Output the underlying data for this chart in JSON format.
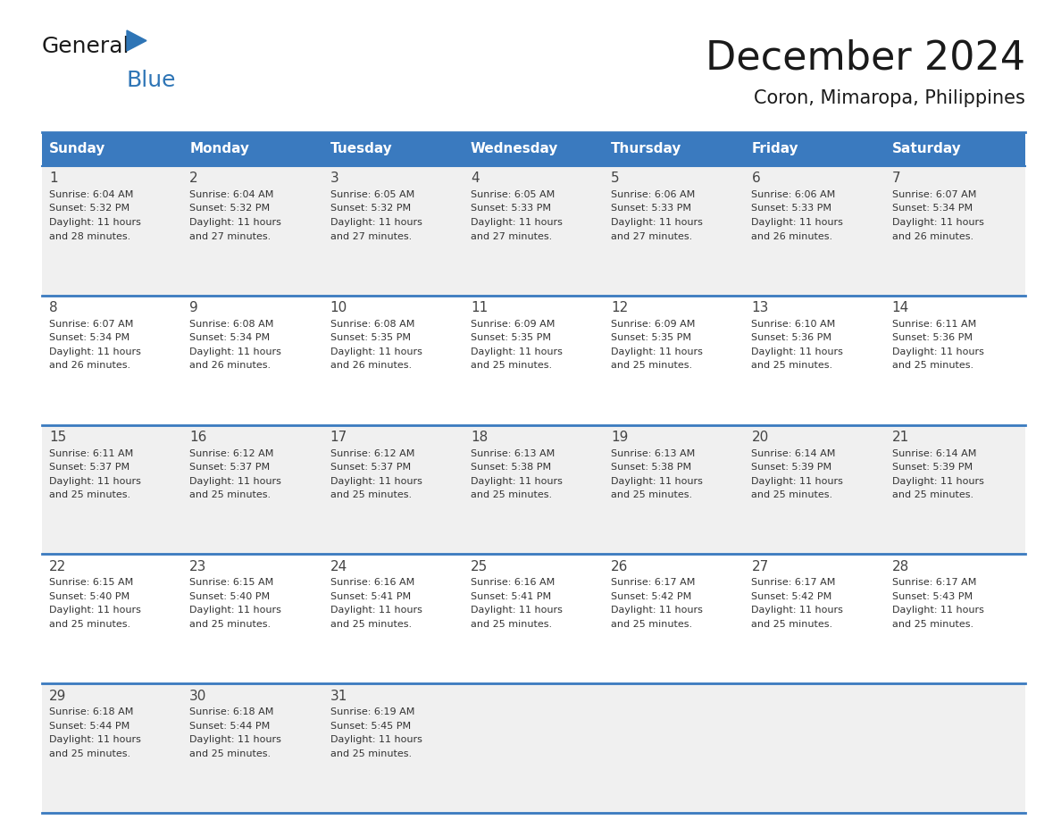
{
  "title": "December 2024",
  "subtitle": "Coron, Mimaropa, Philippines",
  "days_of_week": [
    "Sunday",
    "Monday",
    "Tuesday",
    "Wednesday",
    "Thursday",
    "Friday",
    "Saturday"
  ],
  "header_bg": "#3a7abf",
  "header_text": "#ffffff",
  "row_bg_odd": "#f0f0f0",
  "row_bg_even": "#ffffff",
  "separator_color": "#3a7abf",
  "text_color": "#333333",
  "calendar_data": [
    [
      {
        "day": 1,
        "sunrise": "6:04 AM",
        "sunset": "5:32 PM",
        "daylight": "11 hours and 28 minutes"
      },
      {
        "day": 2,
        "sunrise": "6:04 AM",
        "sunset": "5:32 PM",
        "daylight": "11 hours and 27 minutes"
      },
      {
        "day": 3,
        "sunrise": "6:05 AM",
        "sunset": "5:32 PM",
        "daylight": "11 hours and 27 minutes"
      },
      {
        "day": 4,
        "sunrise": "6:05 AM",
        "sunset": "5:33 PM",
        "daylight": "11 hours and 27 minutes"
      },
      {
        "day": 5,
        "sunrise": "6:06 AM",
        "sunset": "5:33 PM",
        "daylight": "11 hours and 27 minutes"
      },
      {
        "day": 6,
        "sunrise": "6:06 AM",
        "sunset": "5:33 PM",
        "daylight": "11 hours and 26 minutes"
      },
      {
        "day": 7,
        "sunrise": "6:07 AM",
        "sunset": "5:34 PM",
        "daylight": "11 hours and 26 minutes"
      }
    ],
    [
      {
        "day": 8,
        "sunrise": "6:07 AM",
        "sunset": "5:34 PM",
        "daylight": "11 hours and 26 minutes"
      },
      {
        "day": 9,
        "sunrise": "6:08 AM",
        "sunset": "5:34 PM",
        "daylight": "11 hours and 26 minutes"
      },
      {
        "day": 10,
        "sunrise": "6:08 AM",
        "sunset": "5:35 PM",
        "daylight": "11 hours and 26 minutes"
      },
      {
        "day": 11,
        "sunrise": "6:09 AM",
        "sunset": "5:35 PM",
        "daylight": "11 hours and 25 minutes"
      },
      {
        "day": 12,
        "sunrise": "6:09 AM",
        "sunset": "5:35 PM",
        "daylight": "11 hours and 25 minutes"
      },
      {
        "day": 13,
        "sunrise": "6:10 AM",
        "sunset": "5:36 PM",
        "daylight": "11 hours and 25 minutes"
      },
      {
        "day": 14,
        "sunrise": "6:11 AM",
        "sunset": "5:36 PM",
        "daylight": "11 hours and 25 minutes"
      }
    ],
    [
      {
        "day": 15,
        "sunrise": "6:11 AM",
        "sunset": "5:37 PM",
        "daylight": "11 hours and 25 minutes"
      },
      {
        "day": 16,
        "sunrise": "6:12 AM",
        "sunset": "5:37 PM",
        "daylight": "11 hours and 25 minutes"
      },
      {
        "day": 17,
        "sunrise": "6:12 AM",
        "sunset": "5:37 PM",
        "daylight": "11 hours and 25 minutes"
      },
      {
        "day": 18,
        "sunrise": "6:13 AM",
        "sunset": "5:38 PM",
        "daylight": "11 hours and 25 minutes"
      },
      {
        "day": 19,
        "sunrise": "6:13 AM",
        "sunset": "5:38 PM",
        "daylight": "11 hours and 25 minutes"
      },
      {
        "day": 20,
        "sunrise": "6:14 AM",
        "sunset": "5:39 PM",
        "daylight": "11 hours and 25 minutes"
      },
      {
        "day": 21,
        "sunrise": "6:14 AM",
        "sunset": "5:39 PM",
        "daylight": "11 hours and 25 minutes"
      }
    ],
    [
      {
        "day": 22,
        "sunrise": "6:15 AM",
        "sunset": "5:40 PM",
        "daylight": "11 hours and 25 minutes"
      },
      {
        "day": 23,
        "sunrise": "6:15 AM",
        "sunset": "5:40 PM",
        "daylight": "11 hours and 25 minutes"
      },
      {
        "day": 24,
        "sunrise": "6:16 AM",
        "sunset": "5:41 PM",
        "daylight": "11 hours and 25 minutes"
      },
      {
        "day": 25,
        "sunrise": "6:16 AM",
        "sunset": "5:41 PM",
        "daylight": "11 hours and 25 minutes"
      },
      {
        "day": 26,
        "sunrise": "6:17 AM",
        "sunset": "5:42 PM",
        "daylight": "11 hours and 25 minutes"
      },
      {
        "day": 27,
        "sunrise": "6:17 AM",
        "sunset": "5:42 PM",
        "daylight": "11 hours and 25 minutes"
      },
      {
        "day": 28,
        "sunrise": "6:17 AM",
        "sunset": "5:43 PM",
        "daylight": "11 hours and 25 minutes"
      }
    ],
    [
      {
        "day": 29,
        "sunrise": "6:18 AM",
        "sunset": "5:44 PM",
        "daylight": "11 hours and 25 minutes"
      },
      {
        "day": 30,
        "sunrise": "6:18 AM",
        "sunset": "5:44 PM",
        "daylight": "11 hours and 25 minutes"
      },
      {
        "day": 31,
        "sunrise": "6:19 AM",
        "sunset": "5:45 PM",
        "daylight": "11 hours and 25 minutes"
      },
      null,
      null,
      null,
      null
    ]
  ],
  "logo_triangle_color": "#2e75b6",
  "logo_general_color": "#1a1a1a",
  "logo_blue_color": "#2e75b6",
  "title_fontsize": 32,
  "subtitle_fontsize": 15,
  "header_fontsize": 11,
  "day_num_fontsize": 11,
  "cell_text_fontsize": 8
}
